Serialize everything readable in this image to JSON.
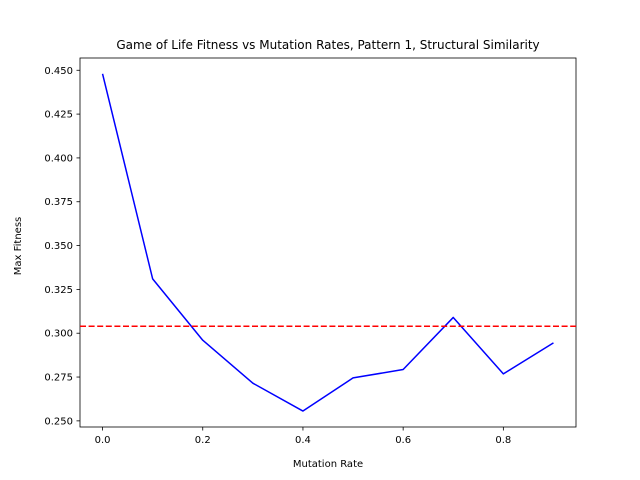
{
  "chart_data": {
    "type": "line",
    "title": "Game of Life Fitness vs Mutation Rates, Pattern 1, Structural Similarity",
    "xlabel": "Mutation Rate",
    "ylabel": "Max Fitness",
    "xlim": [
      -0.045,
      0.945
    ],
    "ylim": [
      0.2465,
      0.457
    ],
    "x_ticks": [
      0.0,
      0.2,
      0.4,
      0.6,
      0.8
    ],
    "y_ticks": [
      0.25,
      0.275,
      0.3,
      0.325,
      0.35,
      0.375,
      0.4,
      0.425,
      0.45
    ],
    "x_tick_labels": [
      "0.0",
      "0.2",
      "0.4",
      "0.6",
      "0.8"
    ],
    "y_tick_labels": [
      "0.250",
      "0.275",
      "0.300",
      "0.325",
      "0.350",
      "0.375",
      "0.400",
      "0.425",
      "0.450"
    ],
    "grid": false,
    "series": [
      {
        "color": "#0000ff",
        "style": "solid",
        "x": [
          0.0,
          0.1,
          0.2,
          0.3,
          0.4,
          0.5,
          0.6,
          0.7,
          0.8,
          0.9
        ],
        "y": [
          0.448,
          0.331,
          0.296,
          0.2715,
          0.2556,
          0.2745,
          0.2793,
          0.309,
          0.2768,
          0.2945
        ]
      }
    ],
    "reference_line": {
      "y": 0.304,
      "color": "#ff0000",
      "style": "dashed"
    }
  }
}
